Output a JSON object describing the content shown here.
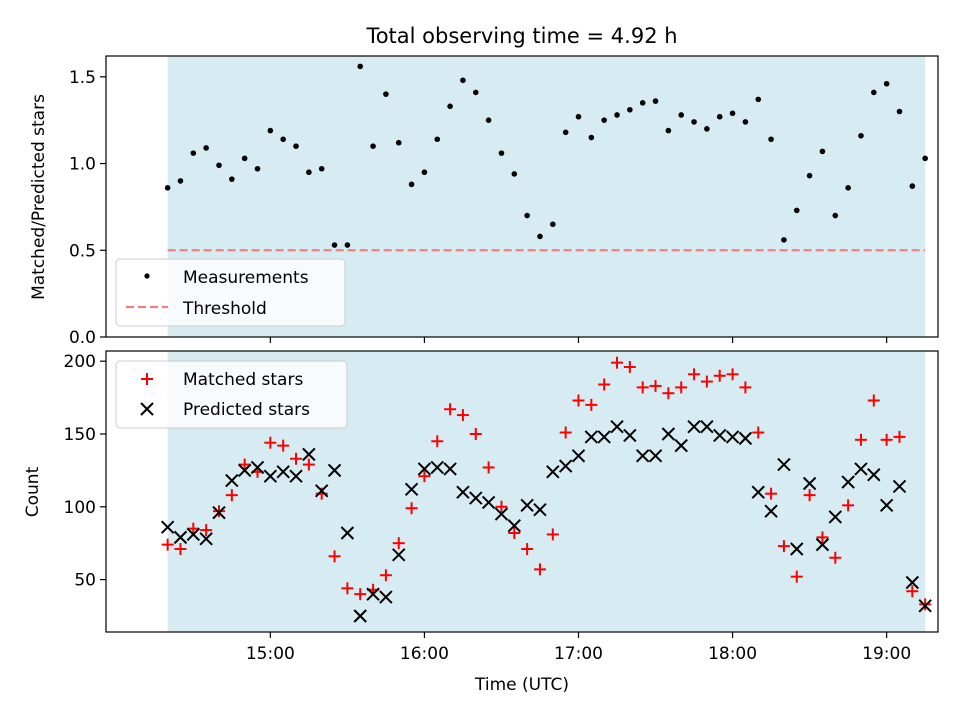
{
  "chart_data": [
    {
      "type": "scatter",
      "title": "Total observing time = 4.92 h",
      "xlabel": "",
      "ylabel": "Matched/Predicted stars",
      "ylim": [
        0,
        1.62
      ],
      "yticks": [
        0.0,
        0.5,
        1.0,
        1.5
      ],
      "ytick_labels": [
        "0.0",
        "0.5",
        "1.0",
        "1.5"
      ],
      "grid": false,
      "shaded_span": {
        "start_min": 860,
        "end_min": 1155,
        "color": "#add8e6"
      },
      "legend": {
        "placement": "lower-left",
        "entries": [
          "Measurements",
          "Threshold"
        ]
      },
      "threshold": {
        "name": "Threshold",
        "value": 0.5,
        "color": "#f08080",
        "style": "dashed"
      },
      "series": [
        {
          "name": "Measurements",
          "color": "#000000",
          "marker": "dot",
          "x": [
            860,
            865,
            870,
            875,
            880,
            885,
            890,
            895,
            900,
            905,
            910,
            915,
            920,
            925,
            930,
            935,
            940,
            945,
            950,
            955,
            960,
            965,
            970,
            975,
            980,
            985,
            990,
            995,
            1000,
            1005,
            1010,
            1015,
            1020,
            1025,
            1030,
            1035,
            1040,
            1045,
            1050,
            1055,
            1060,
            1065,
            1070,
            1075,
            1080,
            1085,
            1090,
            1095,
            1100,
            1105,
            1110,
            1115,
            1120,
            1125,
            1130,
            1135,
            1140,
            1145,
            1150,
            1155
          ],
          "values": [
            0.86,
            0.9,
            1.06,
            1.09,
            0.99,
            0.91,
            1.03,
            0.97,
            1.19,
            1.14,
            1.1,
            0.95,
            0.97,
            0.53,
            0.53,
            1.56,
            1.1,
            1.4,
            1.12,
            0.88,
            0.95,
            1.14,
            1.33,
            1.48,
            1.41,
            1.25,
            1.06,
            0.94,
            0.7,
            0.58,
            0.65,
            1.18,
            1.27,
            1.15,
            1.25,
            1.28,
            1.31,
            1.35,
            1.36,
            1.19,
            1.28,
            1.24,
            1.2,
            1.27,
            1.29,
            1.24,
            1.37,
            1.14,
            0.56,
            0.73,
            0.93,
            1.07,
            0.7,
            0.86,
            1.16,
            1.41,
            1.46,
            1.3,
            0.87,
            1.03
          ]
        }
      ]
    },
    {
      "type": "scatter",
      "title": "",
      "xlabel": "Time (UTC)",
      "ylabel": "Count",
      "ylim": [
        14,
        207
      ],
      "yticks": [
        50,
        100,
        150,
        200
      ],
      "ytick_labels": [
        "50",
        "100",
        "150",
        "200"
      ],
      "xlim_min": [
        836,
        1160
      ],
      "xticks_min": [
        900,
        960,
        1020,
        1080,
        1140
      ],
      "xtick_labels": [
        "15:00",
        "16:00",
        "17:00",
        "18:00",
        "19:00"
      ],
      "grid": false,
      "shaded_span": {
        "start_min": 860,
        "end_min": 1155,
        "color": "#add8e6"
      },
      "legend": {
        "placement": "top-left",
        "entries": [
          "Matched stars",
          "Predicted stars"
        ]
      },
      "series": [
        {
          "name": "Matched stars",
          "color": "#ff0000",
          "marker": "plus",
          "x": [
            860,
            865,
            870,
            875,
            880,
            885,
            890,
            895,
            900,
            905,
            910,
            915,
            920,
            925,
            930,
            935,
            940,
            945,
            950,
            955,
            960,
            965,
            970,
            975,
            980,
            985,
            990,
            995,
            1000,
            1005,
            1010,
            1015,
            1020,
            1025,
            1030,
            1035,
            1040,
            1045,
            1050,
            1055,
            1060,
            1065,
            1070,
            1075,
            1080,
            1085,
            1090,
            1095,
            1100,
            1105,
            1110,
            1115,
            1120,
            1125,
            1130,
            1135,
            1140,
            1145,
            1150,
            1155
          ],
          "values": [
            74,
            71,
            85,
            84,
            97,
            108,
            129,
            124,
            144,
            142,
            133,
            129,
            109,
            66,
            44,
            40,
            43,
            53,
            75,
            99,
            121,
            145,
            167,
            163,
            150,
            127,
            100,
            82,
            71,
            57,
            81,
            151,
            173,
            170,
            184,
            199,
            196,
            182,
            183,
            178,
            182,
            191,
            186,
            190,
            191,
            182,
            151,
            109,
            73,
            52,
            108,
            79,
            65,
            101,
            146,
            173,
            146,
            148,
            42,
            33
          ]
        },
        {
          "name": "Predicted stars",
          "color": "#000000",
          "marker": "x",
          "x": [
            860,
            865,
            870,
            875,
            880,
            885,
            890,
            895,
            900,
            905,
            910,
            915,
            920,
            925,
            930,
            935,
            940,
            945,
            950,
            955,
            960,
            965,
            970,
            975,
            980,
            985,
            990,
            995,
            1000,
            1005,
            1010,
            1015,
            1020,
            1025,
            1030,
            1035,
            1040,
            1045,
            1050,
            1055,
            1060,
            1065,
            1070,
            1075,
            1080,
            1085,
            1090,
            1095,
            1100,
            1105,
            1110,
            1115,
            1120,
            1125,
            1130,
            1135,
            1140,
            1145,
            1150,
            1155
          ],
          "values": [
            86,
            79,
            81,
            78,
            96,
            118,
            125,
            127,
            121,
            124,
            121,
            136,
            111,
            125,
            82,
            25,
            40,
            38,
            67,
            112,
            126,
            127,
            126,
            110,
            106,
            103,
            95,
            87,
            101,
            98,
            124,
            128,
            135,
            148,
            148,
            155,
            149,
            135,
            135,
            150,
            142,
            155,
            155,
            149,
            148,
            147,
            110,
            97,
            129,
            71,
            116,
            74,
            93,
            117,
            126,
            122,
            101,
            114,
            48,
            32
          ]
        }
      ]
    }
  ]
}
